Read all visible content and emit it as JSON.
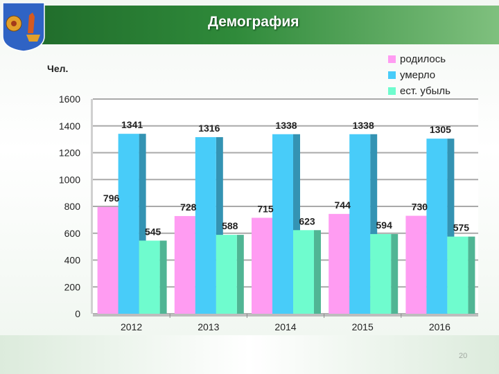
{
  "slide": {
    "title": "Демография",
    "page_number": "20"
  },
  "colors": {
    "header_dark": "#1f6a2a",
    "header_light": "#7fc07e"
  },
  "emblem": {
    "icon": "coat-of-arms-emblem"
  },
  "chart_data": {
    "type": "bar",
    "ylabel": "Чел.",
    "categories": [
      "2012",
      "2013",
      "2014",
      "2015",
      "2016"
    ],
    "series": [
      {
        "name": "родилось",
        "color": "#ff9cf2",
        "values": [
          796,
          728,
          715,
          744,
          730
        ]
      },
      {
        "name": "умерло",
        "color": "#48ccf9",
        "values": [
          1341,
          1316,
          1338,
          1338,
          1305
        ]
      },
      {
        "name": "ест. убыль",
        "color": "#6ffcce",
        "values": [
          545,
          588,
          623,
          594,
          575
        ]
      }
    ],
    "ylim": [
      0,
      1600
    ],
    "yticks": [
      0,
      200,
      400,
      600,
      800,
      1000,
      1200,
      1400,
      1600
    ],
    "grid": true,
    "legend_position": "top-right"
  }
}
